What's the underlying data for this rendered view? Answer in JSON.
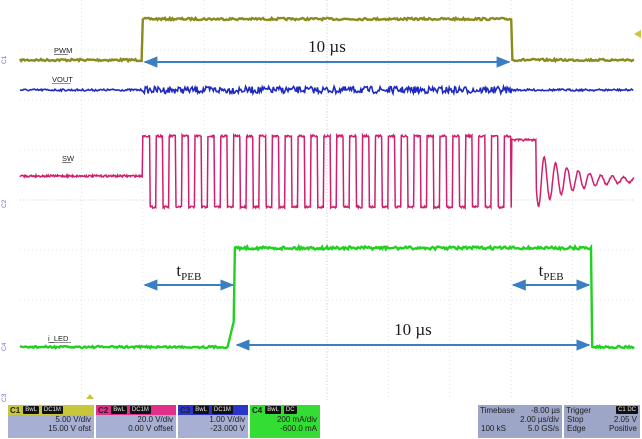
{
  "chart_data": {
    "type": "line",
    "title": "",
    "xlabel": "",
    "ylabel": "",
    "grid": true,
    "series": [
      {
        "name": "PWM",
        "color": "#8b8a1c",
        "shape": "pulse",
        "x": [
          0,
          2.0,
          8.0,
          10.0
        ],
        "values": [
          0,
          1,
          0,
          0
        ]
      },
      {
        "name": "VOUT",
        "color": "#1f2bbf",
        "shape": "ripple",
        "x": [
          0,
          10.0
        ],
        "values": [
          0,
          0
        ]
      },
      {
        "name": "SW",
        "color": "#cf1f6e",
        "shape": "switching",
        "x": [
          0,
          10.0
        ],
        "values": [
          0,
          0
        ]
      },
      {
        "name": "i_LED",
        "color": "#22d022",
        "shape": "pulse",
        "x": [
          0,
          3.5,
          9.3,
          10.0
        ],
        "values": [
          0,
          1,
          0,
          0
        ]
      }
    ],
    "annotations": [
      {
        "text": "10 µs",
        "from": 2.0,
        "to": 8.0,
        "trace": "PWM"
      },
      {
        "text": "10 µs",
        "from": 3.5,
        "to": 9.3,
        "trace": "i_LED"
      },
      {
        "text": "t",
        "sub": "PEB",
        "from": 2.0,
        "to": 3.5
      },
      {
        "text": "t",
        "sub": "PEB",
        "from": 8.0,
        "to": 9.3
      }
    ]
  },
  "channels": [
    {
      "id": "C1",
      "tags": [
        "BwL",
        "DC1M"
      ],
      "color": "#c8c63a",
      "scale": "5.00 V/div",
      "offset": "15.00 V ofst"
    },
    {
      "id": "C2",
      "tags": [
        "BwL",
        "DC1M"
      ],
      "color": "#e0308a",
      "scale": "20.0 V/div",
      "offset": "0.00 V offset"
    },
    {
      "id": "C3",
      "tags": [
        "BwL",
        "DC1M"
      ],
      "color": "#2a35c9",
      "scale": "1.00 V/div",
      "offset": "-23.000 V"
    },
    {
      "id": "C4",
      "tags": [
        "BwL",
        "DC"
      ],
      "color": "#33dd33",
      "scale": "200 mA/div",
      "offset": "-600.0 mA"
    }
  ],
  "timebase": {
    "label": "Timebase",
    "delay": "-8.00 µs",
    "per_div": "2.00 µs/div",
    "samples": "100 kS",
    "rate": "5.0 GS/s"
  },
  "trigger": {
    "label": "Trigger",
    "tag": "C1 DC",
    "mode": "Stop",
    "level": "2.05 V",
    "type": "Edge",
    "slope": "Positive"
  }
}
